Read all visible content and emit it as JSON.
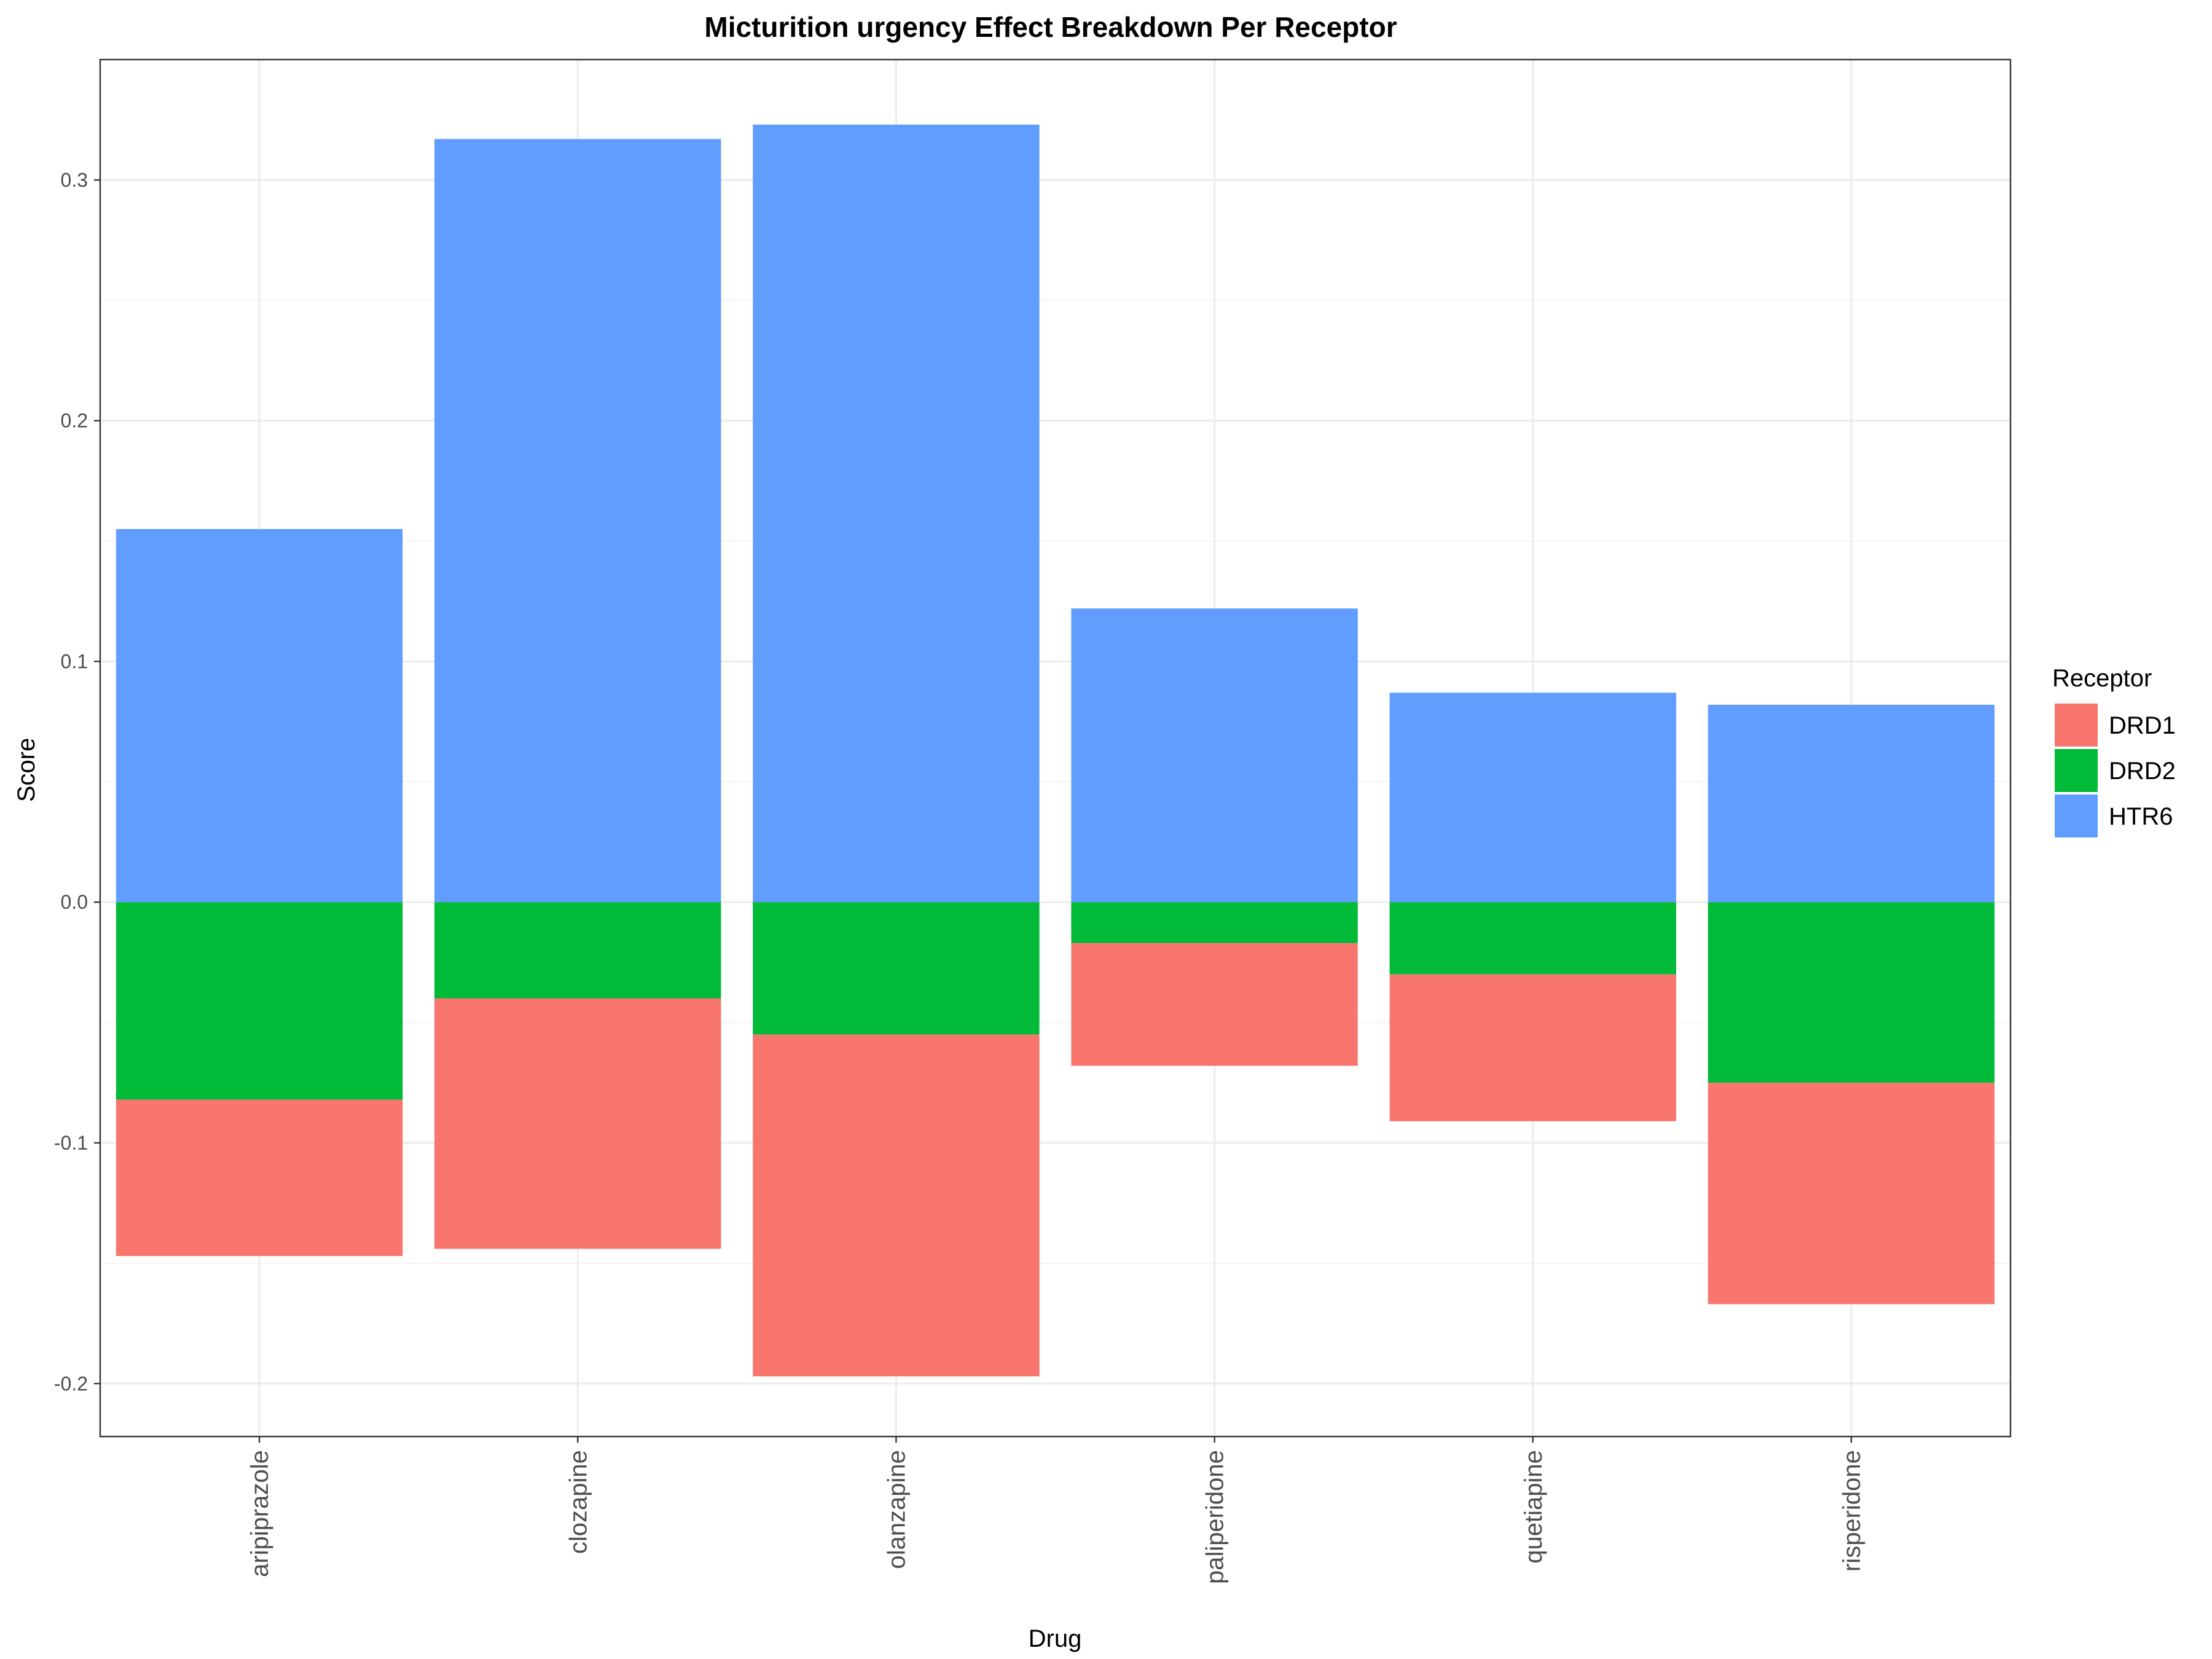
{
  "chart_data": {
    "type": "bar",
    "stacked": true,
    "title": "Micturition urgency Effect Breakdown Per Receptor",
    "xlabel": "Drug",
    "ylabel": "Score",
    "ylim": [
      -0.222,
      0.35
    ],
    "yticks": [
      -0.2,
      -0.1,
      0.0,
      0.1,
      0.2,
      0.3
    ],
    "ytick_labels": [
      "-0.2",
      "-0.1",
      "0.0",
      "0.1",
      "0.2",
      "0.3"
    ],
    "grid": true,
    "categories": [
      "aripiprazole",
      "clozapine",
      "olanzapine",
      "paliperidone",
      "quetiapine",
      "risperidone"
    ],
    "legend": {
      "title": "Receptor",
      "position": "right",
      "entries": [
        "DRD1",
        "DRD2",
        "HTR6"
      ]
    },
    "series": [
      {
        "name": "DRD1",
        "color": "#F8766D",
        "values": [
          -0.065,
          -0.104,
          -0.142,
          -0.051,
          -0.061,
          -0.092
        ]
      },
      {
        "name": "DRD2",
        "color": "#00BA38",
        "values": [
          -0.082,
          -0.04,
          -0.055,
          -0.017,
          -0.03,
          -0.075
        ]
      },
      {
        "name": "HTR6",
        "color": "#619CFF",
        "values": [
          0.155,
          0.317,
          0.323,
          0.122,
          0.087,
          0.082
        ]
      }
    ]
  }
}
